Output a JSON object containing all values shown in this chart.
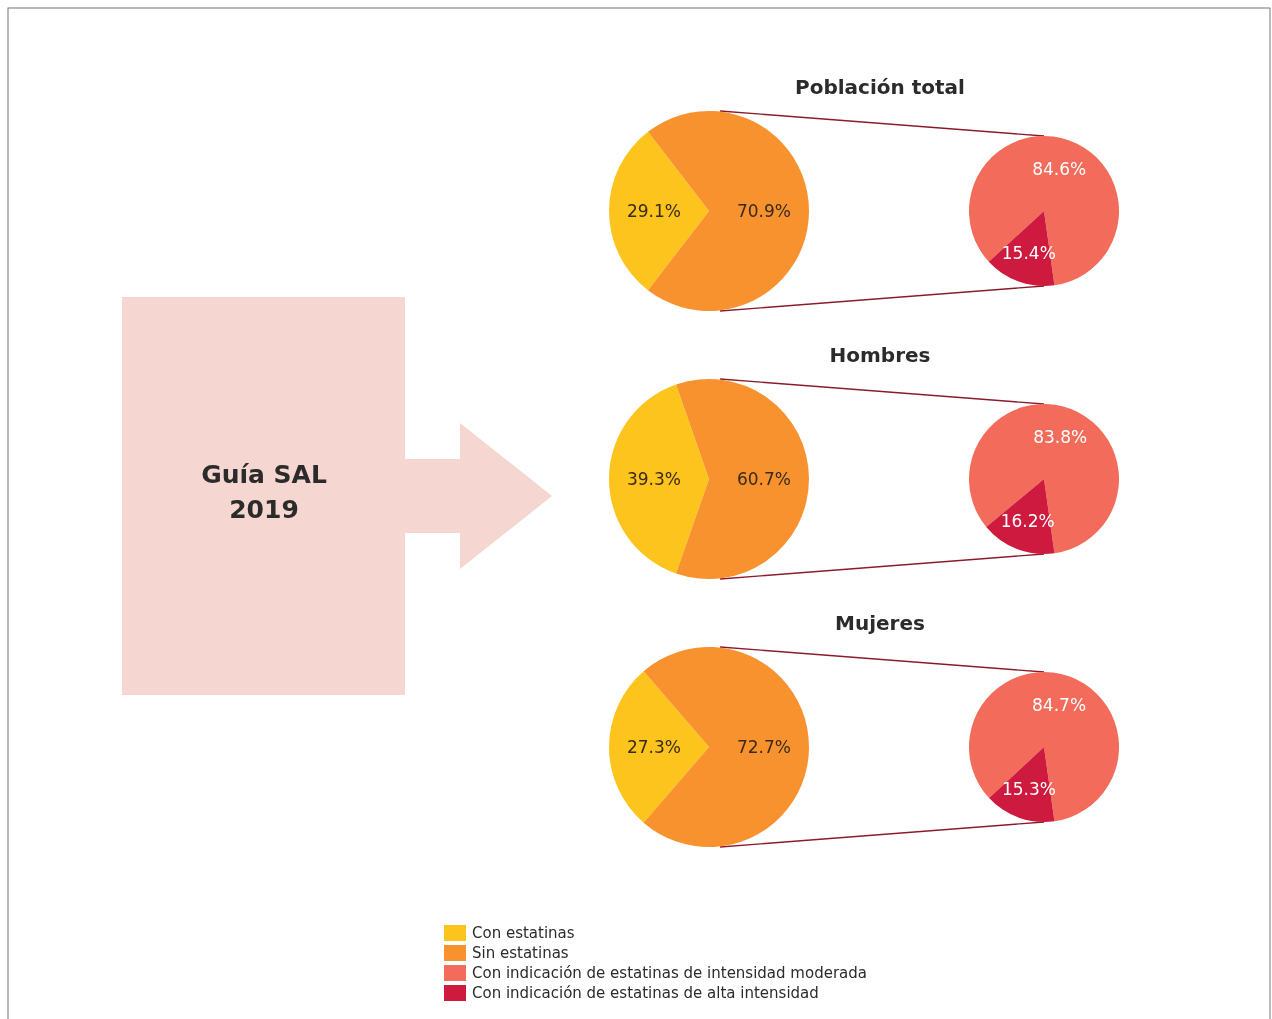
{
  "chart_data": [
    {
      "type": "pie",
      "title": "Población total",
      "categories": [
        "Con estatinas",
        "Sin estatinas"
      ],
      "values": [
        29.1,
        70.9
      ],
      "value_labels": [
        "29.1%",
        "70.9%"
      ],
      "colors": [
        "#fcc41c",
        "#f7922f"
      ],
      "legend": "bottom",
      "annotations": [
        "Guía SAL",
        "2019"
      ]
    },
    {
      "type": "pie",
      "categories": [
        "Con indicación de estatinas de intensidad moderada",
        "Con indicación de estatinas de alta intensidad"
      ],
      "values": [
        84.6,
        15.4
      ],
      "value_labels": [
        "84.6%",
        "15.4%"
      ],
      "colors": [
        "#f26b5b",
        "#cd1a3e"
      ],
      "legend": "bottom"
    },
    {
      "type": "pie",
      "title": "Hombres",
      "categories": [
        null,
        null
      ],
      "values": [
        39.3,
        60.7
      ],
      "value_labels": [
        "39.3%",
        "60.7%"
      ],
      "colors": [
        "#fcc41c",
        "#f7922f"
      ]
    },
    {
      "type": "pie",
      "categories": [
        null,
        null
      ],
      "values": [
        83.8,
        16.2
      ],
      "value_labels": [
        "83.8%",
        "16.2%"
      ],
      "colors": [
        "#f26b5b",
        "#cd1a3e"
      ]
    },
    {
      "type": "pie",
      "title": "Mujeres",
      "categories": [
        null,
        null
      ],
      "values": [
        27.3,
        72.7
      ],
      "value_labels": [
        "27.3%",
        "72.7%"
      ],
      "colors": [
        "#fcc41c",
        "#f7922f"
      ]
    },
    {
      "type": "pie",
      "categories": [
        null,
        null
      ],
      "values": [
        84.7,
        15.3
      ],
      "value_labels": [
        "84.7%",
        "15.3%"
      ],
      "colors": [
        "#f26b5b",
        "#cd1a3e"
      ]
    }
  ]
}
